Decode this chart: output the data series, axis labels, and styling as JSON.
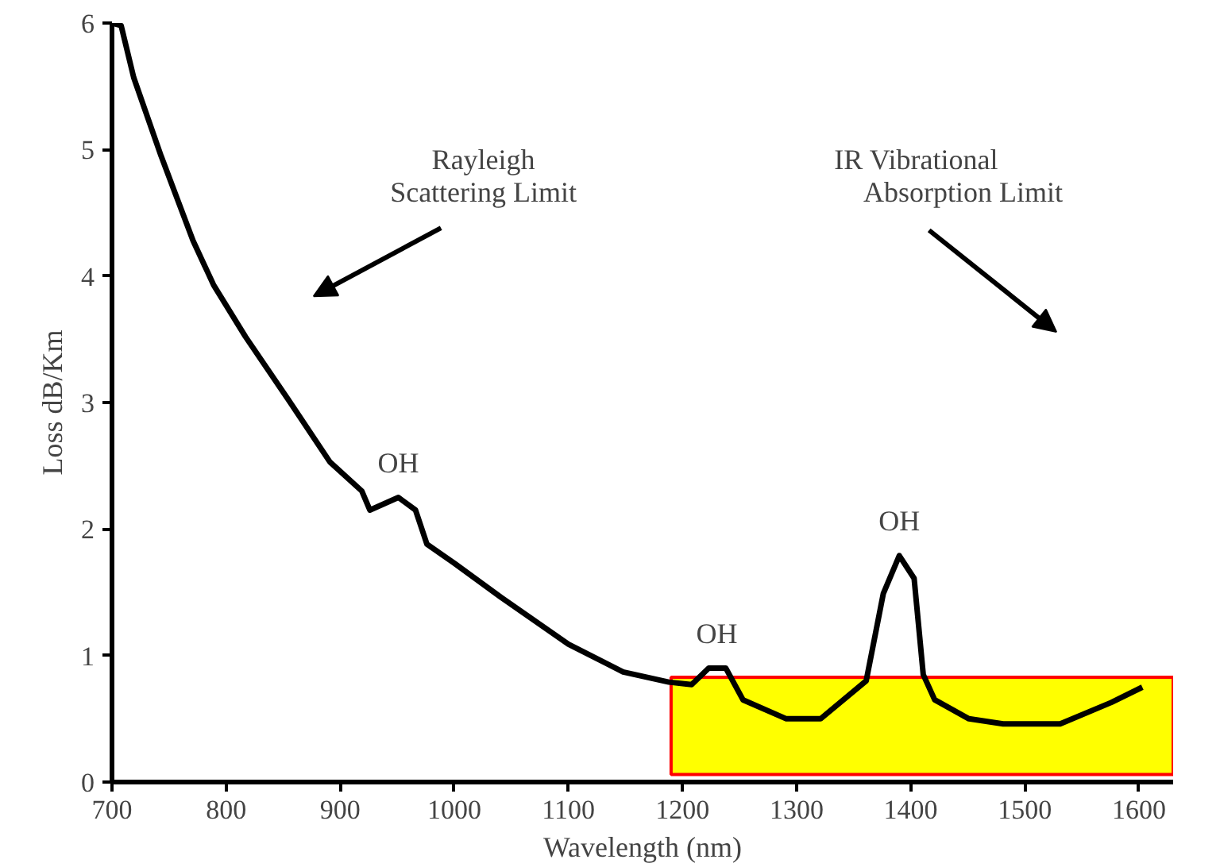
{
  "chart_data": {
    "type": "line",
    "xlabel": "Wavelength (nm)",
    "ylabel": "Loss dB/Km",
    "xlim": [
      700,
      1630
    ],
    "ylim": [
      0,
      6
    ],
    "xticks": [
      700,
      800,
      900,
      1000,
      1100,
      1200,
      1300,
      1400,
      1500,
      1600
    ],
    "yticks": [
      0,
      1,
      2,
      3,
      4,
      5,
      6
    ],
    "grid": false,
    "marker": "none",
    "line_style": "solid",
    "series": [
      {
        "color": "#000000",
        "x": [
          700,
          708,
          719,
          743,
          771,
          789,
          817,
          854,
          891,
          919,
          926,
          951,
          966,
          976,
          1000,
          1041,
          1100,
          1148,
          1188,
          1208,
          1223,
          1238,
          1253,
          1291,
          1321,
          1361,
          1376,
          1390,
          1403,
          1411,
          1421,
          1451,
          1481,
          1531,
          1576,
          1603
        ],
        "values": [
          6.0,
          5.98,
          5.57,
          4.95,
          4.28,
          3.93,
          3.52,
          3.03,
          2.53,
          2.3,
          2.15,
          2.25,
          2.15,
          1.88,
          1.73,
          1.46,
          1.09,
          0.87,
          0.79,
          0.77,
          0.9,
          0.9,
          0.65,
          0.5,
          0.5,
          0.8,
          1.49,
          1.79,
          1.61,
          0.85,
          0.65,
          0.5,
          0.46,
          0.46,
          0.63,
          0.75
        ]
      }
    ],
    "bands": [
      {
        "axis": "x",
        "from": 1190,
        "to": 1630,
        "color": "#ffff00"
      }
    ],
    "annotations": [
      "Rayleigh",
      "Scattering Limit",
      "IR Vibrational",
      "Absorption Limit",
      {
        "text": "OH",
        "x": 951,
        "y": 2.25
      },
      {
        "text": "OH",
        "x": 1230,
        "y": 0.9
      },
      {
        "text": "OH",
        "x": 1390,
        "y": 1.79
      }
    ]
  }
}
